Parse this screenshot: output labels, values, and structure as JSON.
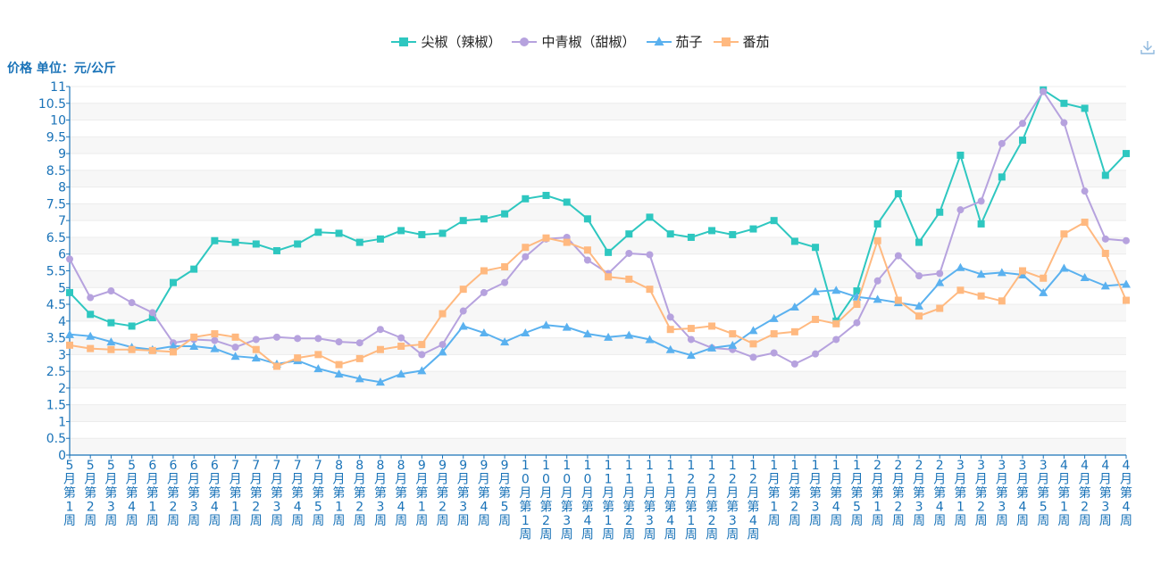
{
  "chart_data": {
    "type": "line",
    "ylabel": "价格 单位：元/公斤",
    "ylim": [
      0,
      11
    ],
    "yticks": [
      "0",
      "0.5",
      "1",
      "1.5",
      "2",
      "2.5",
      "3",
      "3.5",
      "4",
      "4.5",
      "5",
      "5.5",
      "6",
      "6.5",
      "7",
      "7.5",
      "8",
      "8.5",
      "9",
      "9.5",
      "10",
      "10.5",
      "11"
    ],
    "grid": true,
    "legend_position": "top-center",
    "categories": [
      "5月第1周",
      "5月第2周",
      "5月第3周",
      "5月第4周",
      "6月第1周",
      "6月第2周",
      "6月第3周",
      "6月第4周",
      "7月第1周",
      "7月第2周",
      "7月第3周",
      "7月第4周",
      "7月第5周",
      "8月第1周",
      "8月第2周",
      "8月第3周",
      "8月第4周",
      "9月第1周",
      "9月第2周",
      "9月第3周",
      "9月第4周",
      "9月第5周",
      "10月第1周",
      "10月第2周",
      "10月第3周",
      "10月第4周",
      "11月第1周",
      "11月第2周",
      "11月第3周",
      "11月第4周",
      "12月第1周",
      "12月第2周",
      "12月第3周",
      "12月第4周",
      "1月第1周",
      "1月第2周",
      "1月第3周",
      "1月第4周",
      "1月第5周",
      "2月第1周",
      "2月第2周",
      "2月第3周",
      "2月第4周",
      "3月第1周",
      "3月第2周",
      "3月第3周",
      "3月第4周",
      "3月第5周",
      "4月第1周",
      "4月第2周",
      "4月第3周",
      "4月第4周"
    ],
    "series": [
      {
        "name": "尖椒（辣椒）",
        "color": "#2ec7c0",
        "marker": "square",
        "values": [
          4.85,
          4.2,
          3.95,
          3.85,
          4.1,
          5.15,
          5.55,
          6.4,
          6.35,
          6.3,
          6.1,
          6.3,
          6.65,
          6.62,
          6.35,
          6.45,
          6.7,
          6.58,
          6.62,
          7.0,
          7.05,
          7.2,
          7.65,
          7.75,
          7.55,
          7.05,
          6.05,
          6.6,
          7.1,
          6.6,
          6.5,
          6.7,
          6.58,
          6.75,
          7.0,
          6.38,
          6.2,
          4.0,
          4.9,
          6.9,
          7.8,
          6.35,
          7.25,
          8.95,
          6.9,
          8.3,
          9.4,
          10.9,
          10.5,
          10.35,
          8.35,
          9.0
        ]
      },
      {
        "name": "中青椒（甜椒）",
        "color": "#b6a2de",
        "marker": "circle",
        "values": [
          5.85,
          4.7,
          4.9,
          4.55,
          4.25,
          3.35,
          3.45,
          3.42,
          3.22,
          3.45,
          3.52,
          3.48,
          3.48,
          3.38,
          3.35,
          3.75,
          3.5,
          3.0,
          3.3,
          4.3,
          4.85,
          5.15,
          5.92,
          6.45,
          6.5,
          5.82,
          5.42,
          6.02,
          5.98,
          4.12,
          3.45,
          3.2,
          3.15,
          2.92,
          3.05,
          2.72,
          3.02,
          3.45,
          3.95,
          5.2,
          5.95,
          5.35,
          5.42,
          7.32,
          7.58,
          9.3,
          9.9,
          10.85,
          9.92,
          7.88,
          6.45,
          6.4
        ]
      },
      {
        "name": "茄子",
        "color": "#5ab1ef",
        "marker": "triangle",
        "values": [
          3.6,
          3.55,
          3.38,
          3.22,
          3.15,
          3.25,
          3.25,
          3.18,
          2.95,
          2.9,
          2.72,
          2.82,
          2.58,
          2.42,
          2.28,
          2.18,
          2.42,
          2.52,
          3.08,
          3.85,
          3.65,
          3.38,
          3.65,
          3.88,
          3.82,
          3.62,
          3.52,
          3.58,
          3.45,
          3.15,
          2.98,
          3.2,
          3.28,
          3.72,
          4.08,
          4.42,
          4.88,
          4.92,
          4.72,
          4.65,
          4.55,
          4.45,
          5.15,
          5.6,
          5.4,
          5.45,
          5.38,
          4.85,
          5.58,
          5.3,
          5.05,
          5.1
        ]
      },
      {
        "name": "番茄",
        "color": "#ffb980",
        "marker": "square",
        "values": [
          3.28,
          3.18,
          3.15,
          3.15,
          3.12,
          3.08,
          3.52,
          3.62,
          3.52,
          3.15,
          2.65,
          2.9,
          3.0,
          2.7,
          2.88,
          3.15,
          3.25,
          3.3,
          4.22,
          4.95,
          5.5,
          5.62,
          6.2,
          6.48,
          6.35,
          6.12,
          5.32,
          5.25,
          4.95,
          3.75,
          3.78,
          3.85,
          3.62,
          3.32,
          3.62,
          3.68,
          4.05,
          3.92,
          4.5,
          6.4,
          4.62,
          4.15,
          4.38,
          4.92,
          4.75,
          4.6,
          5.5,
          5.28,
          6.6,
          6.95,
          6.02,
          4.62
        ]
      }
    ]
  },
  "icons": {
    "download": "download-icon"
  }
}
